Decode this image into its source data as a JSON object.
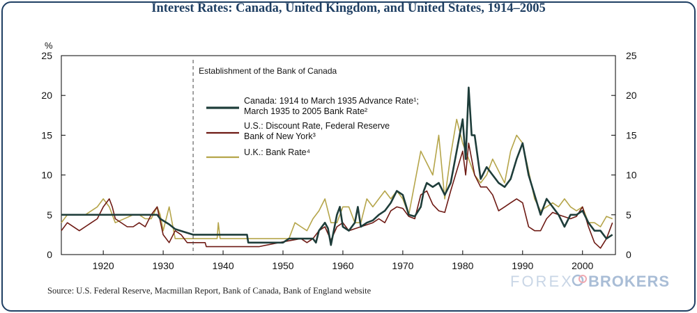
{
  "chart_data": {
    "type": "line",
    "title": "Interest Rates: Canada, United Kingdom, and United States, 1914–2005",
    "ylabel": "%",
    "xlim": [
      1913,
      2005.5
    ],
    "ylim": [
      0,
      25
    ],
    "x_ticks": [
      "1920",
      "1930",
      "1940",
      "1950",
      "1960",
      "1970",
      "1980",
      "1990",
      "2000"
    ],
    "x_tick_values": [
      1920,
      1930,
      1940,
      1950,
      1960,
      1970,
      1980,
      1990,
      2000
    ],
    "y_ticks": [
      "0",
      "5",
      "10",
      "15",
      "20",
      "25"
    ],
    "y_tick_values": [
      0,
      5,
      10,
      15,
      20,
      25
    ],
    "grid": false,
    "legend_position": "upper-center",
    "annotation": {
      "text": "Establishment of the Bank of Canada",
      "x": 1935
    },
    "series": [
      {
        "name": "Canada: 1914 to March 1935 Advance Rate¹; March 1935 to 2005 Bank Rate²",
        "legend_line1": "Canada: 1914 to March 1935 Advance Rate¹;",
        "legend_line2": "March 1935 to 2005 Bank Rate²",
        "color": "#1e3d3a",
        "x": [
          1913,
          1929,
          1929.5,
          1931,
          1932,
          1935,
          1935.2,
          1944,
          1944.2,
          1950,
          1951,
          1955,
          1955.5,
          1956,
          1957,
          1957.5,
          1958,
          1959,
          1959.5,
          1960,
          1961,
          1962,
          1962.5,
          1963,
          1964,
          1965,
          1966,
          1967,
          1968,
          1969,
          1970,
          1971,
          1972,
          1973,
          1973.5,
          1974,
          1975,
          1976,
          1977,
          1978,
          1979,
          1980,
          1980.5,
          1981,
          1981.5,
          1982,
          1983,
          1984,
          1985,
          1986,
          1987,
          1988,
          1989,
          1990,
          1991,
          1992,
          1993,
          1994,
          1995,
          1996,
          1997,
          1998,
          1999,
          2000,
          2001,
          2002,
          2003,
          2004,
          2005
        ],
        "values": [
          5,
          5,
          4.5,
          3.8,
          3.2,
          2.5,
          2.5,
          2.5,
          1.5,
          1.5,
          2,
          2,
          1.5,
          3,
          4,
          3.3,
          1.2,
          5,
          6,
          3.5,
          3,
          4,
          6,
          3.5,
          4,
          4.3,
          5,
          5.5,
          6.5,
          8,
          7.5,
          5,
          4.8,
          6,
          8,
          9,
          8.5,
          9,
          7.5,
          9,
          13,
          17,
          12,
          21,
          15,
          15,
          9.5,
          11,
          10,
          9,
          8.5,
          9.5,
          12,
          14,
          10,
          7.5,
          5,
          7,
          6,
          5,
          3.5,
          5,
          5,
          5.5,
          4,
          3,
          3,
          2,
          2.5
        ]
      },
      {
        "name": "U.S.: Discount Rate, Federal Reserve Bank of New York³",
        "legend_line1": "U.S.: Discount Rate, Federal Reserve",
        "legend_line2": "Bank of New York³",
        "color": "#6e1a14",
        "x": [
          1913,
          1914,
          1916,
          1918,
          1919,
          1920,
          1921,
          1921.5,
          1922,
          1924,
          1925,
          1926,
          1927,
          1928,
          1929,
          1930,
          1931,
          1932,
          1933,
          1934,
          1937,
          1937.2,
          1946,
          1948,
          1950,
          1953,
          1954,
          1955,
          1956,
          1957,
          1958,
          1959,
          1960,
          1961,
          1963,
          1965,
          1966,
          1967,
          1968,
          1969,
          1970,
          1971,
          1972,
          1973,
          1974,
          1975,
          1976,
          1977,
          1978,
          1979,
          1980,
          1980.5,
          1981,
          1982,
          1983,
          1984,
          1985,
          1986,
          1987,
          1988,
          1989,
          1990,
          1991,
          1992,
          1993,
          1994,
          1995,
          1996,
          1998,
          1999,
          2000,
          2001,
          2002,
          2003,
          2004,
          2005
        ],
        "values": [
          3,
          4,
          3,
          4,
          4.5,
          6,
          7,
          6,
          4.5,
          3.5,
          3.5,
          4,
          3.5,
          5,
          6,
          2.5,
          1.5,
          3,
          2.5,
          1.5,
          1.5,
          1,
          1,
          1.3,
          1.6,
          2,
          1.5,
          2,
          3,
          3.5,
          1.8,
          3.5,
          4,
          3,
          3.5,
          4,
          4.5,
          4,
          5.5,
          6,
          5.8,
          4.8,
          4.5,
          7.5,
          8,
          6.3,
          5.5,
          5.3,
          8,
          10.5,
          13,
          10,
          14,
          10,
          8.5,
          8.5,
          7.5,
          5.5,
          6,
          6.5,
          7,
          6.5,
          3.5,
          3,
          3,
          4.5,
          5.3,
          5,
          4.5,
          4.8,
          6,
          3.5,
          1.5,
          0.8,
          2,
          4
        ]
      },
      {
        "name": "U.K.: Bank Rate⁴",
        "legend_line1": "U.K.: Bank Rate⁴",
        "legend_line2": "",
        "color": "#b5a54a",
        "x": [
          1913,
          1914,
          1915,
          1917,
          1919,
          1920,
          1921,
          1922,
          1925,
          1926,
          1927,
          1928,
          1929,
          1929.5,
          1930,
          1931,
          1932,
          1935,
          1939,
          1939.2,
          1939.5,
          1951,
          1952,
          1953,
          1954,
          1955,
          1956,
          1957,
          1958,
          1959,
          1960,
          1961,
          1962,
          1963,
          1964,
          1965,
          1966,
          1967,
          1968,
          1969,
          1970,
          1971,
          1972,
          1973,
          1974,
          1975,
          1976,
          1977,
          1978,
          1979,
          1980,
          1981,
          1982,
          1983,
          1984,
          1985,
          1986,
          1987,
          1988,
          1989,
          1990,
          1991,
          1992,
          1993,
          1994,
          1995,
          1996,
          1997,
          1998,
          1999,
          2000,
          2001,
          2002,
          2003,
          2004,
          2005
        ],
        "values": [
          4,
          5,
          5,
          5,
          6,
          7,
          6,
          4,
          5,
          5,
          4.5,
          4.5,
          6,
          5,
          3,
          6,
          2,
          2,
          2,
          4,
          2,
          2,
          4,
          3.5,
          3,
          4.5,
          5.5,
          7,
          4,
          4,
          6,
          6,
          4,
          4,
          7,
          6,
          7,
          8,
          7,
          8,
          7,
          5,
          9,
          13,
          11.5,
          10,
          15,
          7,
          12.5,
          17,
          14,
          12,
          10,
          9,
          10,
          12,
          10.5,
          9,
          13,
          15,
          14,
          10.5,
          7,
          5.5,
          6,
          6.5,
          6,
          7,
          6,
          5.5,
          6,
          4,
          4,
          3.5,
          4.8,
          4.5
        ]
      }
    ]
  },
  "source_text": "Source: U.S. Federal Reserve, Macmillan Report, Bank of Canada, Bank of England website",
  "watermark": {
    "left_text": "FOREX",
    "right_text": "BROKERS",
    "color_light": "#c9d6e6",
    "color_mid": "#a9bdd6",
    "accent": "#f0a9b1"
  }
}
